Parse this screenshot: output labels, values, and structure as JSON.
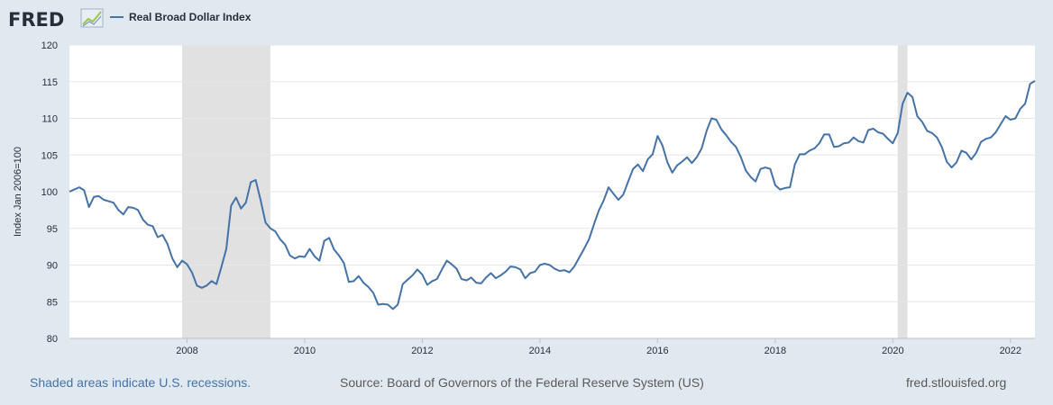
{
  "logo": {
    "text": "FRED",
    "icon": "chart-trend-icon"
  },
  "legend": {
    "label": "Real Broad Dollar Index",
    "color": "#4572a7"
  },
  "footer": {
    "recession_note": "Shaded areas indicate U.S. recessions.",
    "source": "Source: Board of Governors of the Federal Reserve System (US)",
    "site": "fred.stlouisfed.org"
  },
  "chart_data": {
    "type": "line",
    "title": "",
    "xlabel": "",
    "ylabel": "Index Jan 2006=100",
    "series_name": "Real Broad Dollar Index",
    "xlim": [
      "2006-01",
      "2022-06"
    ],
    "ylim": [
      80,
      120
    ],
    "y_ticks": [
      80,
      85,
      90,
      95,
      100,
      105,
      110,
      115,
      120
    ],
    "x_ticks": [
      "2008",
      "2010",
      "2012",
      "2014",
      "2016",
      "2018",
      "2020",
      "2022"
    ],
    "grid": "horizontal",
    "recessions": [
      {
        "start": "2007-12",
        "end": "2009-06"
      },
      {
        "start": "2020-02",
        "end": "2020-04"
      }
    ],
    "x": [
      "2006-01",
      "2006-02",
      "2006-03",
      "2006-04",
      "2006-05",
      "2006-06",
      "2006-07",
      "2006-08",
      "2006-09",
      "2006-10",
      "2006-11",
      "2006-12",
      "2007-01",
      "2007-02",
      "2007-03",
      "2007-04",
      "2007-05",
      "2007-06",
      "2007-07",
      "2007-08",
      "2007-09",
      "2007-10",
      "2007-11",
      "2007-12",
      "2008-01",
      "2008-02",
      "2008-03",
      "2008-04",
      "2008-05",
      "2008-06",
      "2008-07",
      "2008-08",
      "2008-09",
      "2008-10",
      "2008-11",
      "2008-12",
      "2009-01",
      "2009-02",
      "2009-03",
      "2009-04",
      "2009-05",
      "2009-06",
      "2009-07",
      "2009-08",
      "2009-09",
      "2009-10",
      "2009-11",
      "2009-12",
      "2010-01",
      "2010-02",
      "2010-03",
      "2010-04",
      "2010-05",
      "2010-06",
      "2010-07",
      "2010-08",
      "2010-09",
      "2010-10",
      "2010-11",
      "2010-12",
      "2011-01",
      "2011-02",
      "2011-03",
      "2011-04",
      "2011-05",
      "2011-06",
      "2011-07",
      "2011-08",
      "2011-09",
      "2011-10",
      "2011-11",
      "2011-12",
      "2012-01",
      "2012-02",
      "2012-03",
      "2012-04",
      "2012-05",
      "2012-06",
      "2012-07",
      "2012-08",
      "2012-09",
      "2012-10",
      "2012-11",
      "2012-12",
      "2013-01",
      "2013-02",
      "2013-03",
      "2013-04",
      "2013-05",
      "2013-06",
      "2013-07",
      "2013-08",
      "2013-09",
      "2013-10",
      "2013-11",
      "2013-12",
      "2014-01",
      "2014-02",
      "2014-03",
      "2014-04",
      "2014-05",
      "2014-06",
      "2014-07",
      "2014-08",
      "2014-09",
      "2014-10",
      "2014-11",
      "2014-12",
      "2015-01",
      "2015-02",
      "2015-03",
      "2015-04",
      "2015-05",
      "2015-06",
      "2015-07",
      "2015-08",
      "2015-09",
      "2015-10",
      "2015-11",
      "2015-12",
      "2016-01",
      "2016-02",
      "2016-03",
      "2016-04",
      "2016-05",
      "2016-06",
      "2016-07",
      "2016-08",
      "2016-09",
      "2016-10",
      "2016-11",
      "2016-12",
      "2017-01",
      "2017-02",
      "2017-03",
      "2017-04",
      "2017-05",
      "2017-06",
      "2017-07",
      "2017-08",
      "2017-09",
      "2017-10",
      "2017-11",
      "2017-12",
      "2018-01",
      "2018-02",
      "2018-03",
      "2018-04",
      "2018-05",
      "2018-06",
      "2018-07",
      "2018-08",
      "2018-09",
      "2018-10",
      "2018-11",
      "2018-12",
      "2019-01",
      "2019-02",
      "2019-03",
      "2019-04",
      "2019-05",
      "2019-06",
      "2019-07",
      "2019-08",
      "2019-09",
      "2019-10",
      "2019-11",
      "2019-12",
      "2020-01",
      "2020-02",
      "2020-03",
      "2020-04",
      "2020-05",
      "2020-06",
      "2020-07",
      "2020-08",
      "2020-09",
      "2020-10",
      "2020-11",
      "2020-12",
      "2021-01",
      "2021-02",
      "2021-03",
      "2021-04",
      "2021-05",
      "2021-06",
      "2021-07",
      "2021-08",
      "2021-09",
      "2021-10",
      "2021-11",
      "2021-12",
      "2022-01",
      "2022-02",
      "2022-03",
      "2022-04",
      "2022-05",
      "2022-06"
    ],
    "values": [
      100.0,
      100.3,
      100.6,
      100.2,
      97.9,
      99.3,
      99.4,
      98.9,
      98.7,
      98.5,
      97.5,
      96.9,
      97.9,
      97.8,
      97.5,
      96.2,
      95.5,
      95.3,
      93.8,
      94.1,
      92.9,
      90.9,
      89.7,
      90.6,
      90.1,
      89.0,
      87.2,
      86.9,
      87.2,
      87.8,
      87.4,
      89.7,
      92.2,
      98.1,
      99.2,
      97.7,
      98.5,
      101.3,
      101.6,
      98.9,
      95.8,
      95.0,
      94.6,
      93.5,
      92.8,
      91.3,
      90.9,
      91.2,
      91.1,
      92.2,
      91.2,
      90.6,
      93.3,
      93.7,
      92.1,
      91.3,
      90.3,
      87.7,
      87.8,
      88.5,
      87.6,
      87.0,
      86.2,
      84.6,
      84.7,
      84.6,
      84.0,
      84.6,
      87.4,
      88.0,
      88.6,
      89.4,
      88.7,
      87.3,
      87.8,
      88.1,
      89.4,
      90.6,
      90.1,
      89.5,
      88.1,
      87.9,
      88.3,
      87.6,
      87.5,
      88.3,
      88.9,
      88.2,
      88.6,
      89.1,
      89.8,
      89.7,
      89.4,
      88.2,
      88.9,
      89.1,
      90.0,
      90.2,
      90.0,
      89.5,
      89.2,
      89.3,
      89.0,
      89.8,
      91.0,
      92.2,
      93.5,
      95.5,
      97.4,
      98.8,
      100.6,
      99.7,
      98.9,
      99.6,
      101.4,
      103.1,
      103.7,
      102.8,
      104.4,
      105.1,
      107.6,
      106.3,
      104.0,
      102.6,
      103.6,
      104.1,
      104.7,
      103.9,
      104.7,
      105.9,
      108.3,
      110.0,
      109.8,
      108.5,
      107.7,
      106.8,
      106.1,
      104.7,
      102.9,
      102.0,
      101.4,
      103.1,
      103.3,
      103.1,
      100.9,
      100.3,
      100.5,
      100.6,
      103.7,
      105.1,
      105.1,
      105.6,
      105.9,
      106.6,
      107.8,
      107.8,
      106.1,
      106.2,
      106.6,
      106.7,
      107.4,
      106.9,
      106.7,
      108.4,
      108.6,
      108.1,
      107.9,
      107.2,
      106.6,
      108.0,
      112.0,
      113.5,
      112.9,
      110.3,
      109.5,
      108.3,
      108.0,
      107.4,
      106.1,
      104.1,
      103.3,
      104.0,
      105.6,
      105.3,
      104.4,
      105.3,
      106.8,
      107.2,
      107.4,
      108.1,
      109.2,
      110.3,
      109.8,
      110.0,
      111.3,
      112.0,
      114.7,
      115.1
    ]
  }
}
